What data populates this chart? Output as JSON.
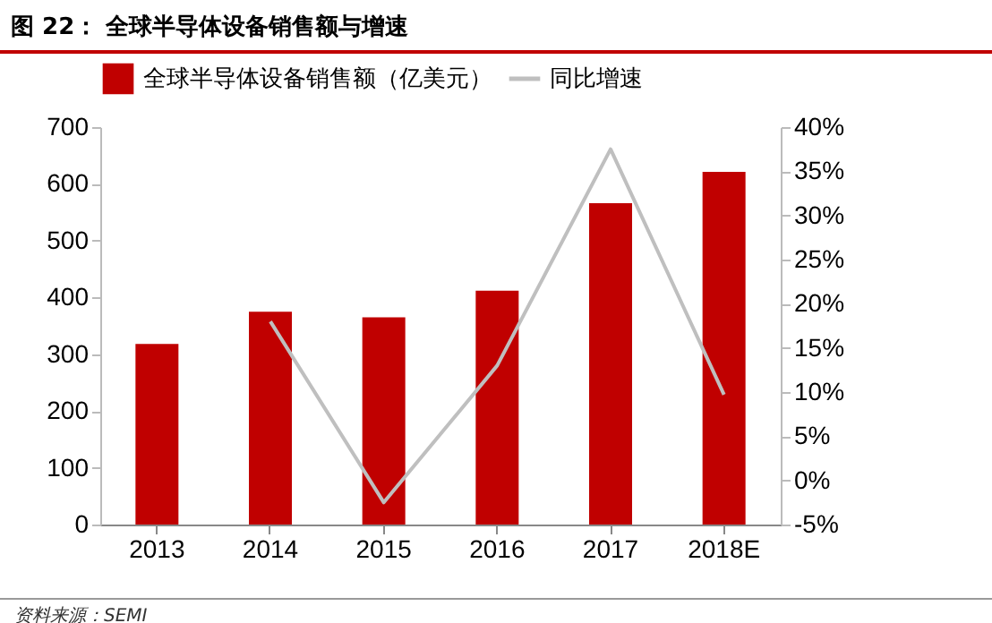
{
  "chart_data": {
    "type": "bar",
    "title": "图 22：  全球半导体设备销售额与增速",
    "categories": [
      "2013",
      "2014",
      "2015",
      "2016",
      "2017",
      "2018E"
    ],
    "series": [
      {
        "name": "全球半导体设备销售额（亿美元）",
        "color": "#c00000",
        "values": [
          318,
          375,
          365,
          412,
          566,
          621
        ]
      },
      {
        "name": "同比增速",
        "type": "line",
        "axis": "y2",
        "color": "#bfbfbf",
        "values": [
          null,
          18,
          -2.5,
          13,
          37.5,
          9.7
        ]
      }
    ],
    "ylim": [
      0,
      700
    ],
    "yticks": [
      0,
      100,
      200,
      300,
      400,
      500,
      600,
      700
    ],
    "y2lim": [
      -5,
      40
    ],
    "y2ticks": [
      {
        "value": -5,
        "label": "-5%"
      },
      {
        "value": 0,
        "label": "0%"
      },
      {
        "value": 5,
        "label": "5%"
      },
      {
        "value": 10,
        "label": "10%"
      },
      {
        "value": 15,
        "label": "15%"
      },
      {
        "value": 20,
        "label": "20%"
      },
      {
        "value": 25,
        "label": "25%"
      },
      {
        "value": 30,
        "label": "30%"
      },
      {
        "value": 35,
        "label": "35%"
      },
      {
        "value": 40,
        "label": "40%"
      }
    ],
    "legend": "top",
    "grid": false,
    "marker": "none",
    "annotations": [
      "资料来源：SEMI"
    ]
  }
}
